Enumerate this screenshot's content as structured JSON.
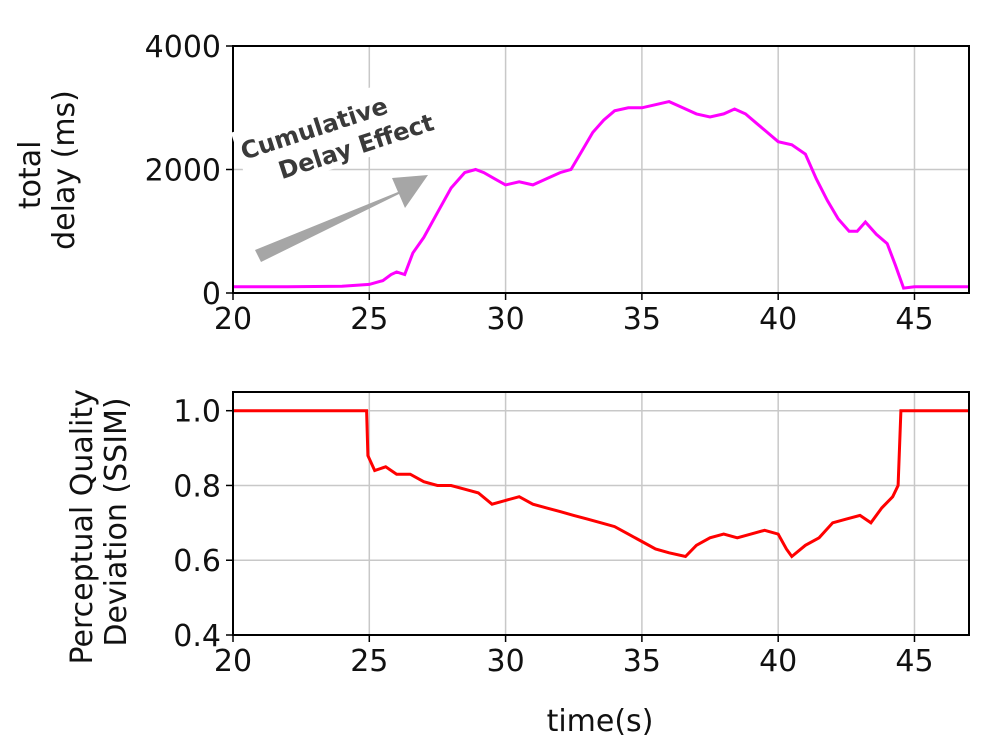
{
  "colors": {
    "delay_line": "#ff00ff",
    "ssim_line": "#ff0000",
    "grid": "#c8c8c8",
    "arrow": "#a6a6a6"
  },
  "annotation": {
    "line1": "Cumulative",
    "line2": "Delay Effect"
  },
  "chart_data": [
    {
      "type": "line",
      "ylabel_line1": "total",
      "ylabel_line2": "delay (ms)",
      "xlabel": "",
      "xlim": [
        20,
        47
      ],
      "ylim": [
        0,
        4000
      ],
      "grid": true,
      "xticks": [
        20,
        25,
        30,
        35,
        40,
        45
      ],
      "yticks": [
        0,
        2000,
        4000
      ],
      "series": [
        {
          "values": [
            [
              20,
              100
            ],
            [
              22,
              100
            ],
            [
              24,
              110
            ],
            [
              25,
              140
            ],
            [
              25.5,
              200
            ],
            [
              25.8,
              300
            ],
            [
              26,
              340
            ],
            [
              26.3,
              300
            ],
            [
              26.6,
              650
            ],
            [
              27,
              900
            ],
            [
              27.5,
              1300
            ],
            [
              28,
              1700
            ],
            [
              28.5,
              1950
            ],
            [
              28.9,
              2000
            ],
            [
              29.2,
              1950
            ],
            [
              29.6,
              1850
            ],
            [
              30,
              1750
            ],
            [
              30.5,
              1800
            ],
            [
              31,
              1750
            ],
            [
              31.5,
              1850
            ],
            [
              32,
              1950
            ],
            [
              32.4,
              2000
            ],
            [
              32.8,
              2300
            ],
            [
              33.2,
              2600
            ],
            [
              33.6,
              2800
            ],
            [
              34,
              2950
            ],
            [
              34.5,
              3000
            ],
            [
              35,
              3000
            ],
            [
              35.5,
              3050
            ],
            [
              36,
              3100
            ],
            [
              36.5,
              3000
            ],
            [
              37,
              2900
            ],
            [
              37.5,
              2850
            ],
            [
              38,
              2900
            ],
            [
              38.4,
              2980
            ],
            [
              38.8,
              2900
            ],
            [
              39.2,
              2750
            ],
            [
              39.6,
              2600
            ],
            [
              40,
              2450
            ],
            [
              40.5,
              2400
            ],
            [
              41,
              2250
            ],
            [
              41.4,
              1850
            ],
            [
              41.8,
              1500
            ],
            [
              42.2,
              1200
            ],
            [
              42.6,
              1000
            ],
            [
              42.9,
              1000
            ],
            [
              43.2,
              1150
            ],
            [
              43.6,
              950
            ],
            [
              44,
              800
            ],
            [
              44.3,
              450
            ],
            [
              44.6,
              80
            ],
            [
              45,
              100
            ],
            [
              47,
              100
            ]
          ]
        }
      ]
    },
    {
      "type": "line",
      "ylabel_line1": "Perceptual Quality",
      "ylabel_line2": "Deviation (SSIM)",
      "xlabel": "time(s)",
      "xlim": [
        20,
        47
      ],
      "ylim": [
        0.4,
        1.05
      ],
      "grid": true,
      "xticks": [
        20,
        25,
        30,
        35,
        40,
        45
      ],
      "yticks": [
        0.4,
        0.6,
        0.8,
        1.0
      ],
      "ytick_labels": [
        "0.4",
        "0.6",
        "0.8",
        "1.0"
      ],
      "series": [
        {
          "values": [
            [
              20,
              1.0
            ],
            [
              24.9,
              1.0
            ],
            [
              24.95,
              0.88
            ],
            [
              25.2,
              0.84
            ],
            [
              25.6,
              0.85
            ],
            [
              26,
              0.83
            ],
            [
              26.5,
              0.83
            ],
            [
              27,
              0.81
            ],
            [
              27.5,
              0.8
            ],
            [
              28,
              0.8
            ],
            [
              28.5,
              0.79
            ],
            [
              29,
              0.78
            ],
            [
              29.5,
              0.75
            ],
            [
              30,
              0.76
            ],
            [
              30.5,
              0.77
            ],
            [
              31,
              0.75
            ],
            [
              31.5,
              0.74
            ],
            [
              32,
              0.73
            ],
            [
              32.5,
              0.72
            ],
            [
              33,
              0.71
            ],
            [
              33.5,
              0.7
            ],
            [
              34,
              0.69
            ],
            [
              34.5,
              0.67
            ],
            [
              35,
              0.65
            ],
            [
              35.5,
              0.63
            ],
            [
              36,
              0.62
            ],
            [
              36.6,
              0.61
            ],
            [
              37,
              0.64
            ],
            [
              37.5,
              0.66
            ],
            [
              38,
              0.67
            ],
            [
              38.5,
              0.66
            ],
            [
              39,
              0.67
            ],
            [
              39.5,
              0.68
            ],
            [
              40,
              0.67
            ],
            [
              40.3,
              0.63
            ],
            [
              40.5,
              0.61
            ],
            [
              41,
              0.64
            ],
            [
              41.5,
              0.66
            ],
            [
              42,
              0.7
            ],
            [
              42.5,
              0.71
            ],
            [
              43,
              0.72
            ],
            [
              43.4,
              0.7
            ],
            [
              43.8,
              0.74
            ],
            [
              44.2,
              0.77
            ],
            [
              44.4,
              0.8
            ],
            [
              44.5,
              1.0
            ],
            [
              47,
              1.0
            ]
          ]
        }
      ]
    }
  ]
}
